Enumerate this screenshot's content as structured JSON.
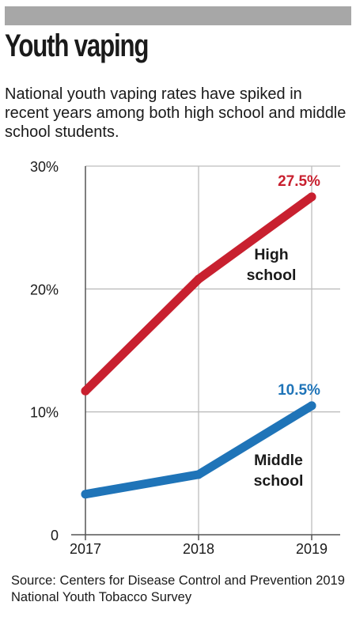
{
  "header": {
    "title": "Youth vaping",
    "subtitle": "National youth vaping rates have spiked in recent years among both high school and middle school students."
  },
  "source": "Source: Centers for Disease Control and Prevention 2019 National Youth Tobacco Survey",
  "chart_data": {
    "type": "line",
    "title": "Youth vaping",
    "x": [
      "2017",
      "2018",
      "2019"
    ],
    "y_ticks": [
      0,
      10,
      20,
      30
    ],
    "y_tick_labels": [
      "0",
      "10%",
      "20%",
      "30%"
    ],
    "ylim": [
      0,
      30
    ],
    "grid": true,
    "series": [
      {
        "name": "High school",
        "name_lines": [
          "High",
          "school"
        ],
        "values": [
          11.7,
          20.8,
          27.5
        ],
        "color": "#c8202f",
        "end_label": "27.5%"
      },
      {
        "name": "Middle school",
        "name_lines": [
          "Middle",
          "school"
        ],
        "values": [
          3.3,
          4.9,
          10.5
        ],
        "color": "#1f74b8",
        "end_label": "10.5%"
      }
    ]
  }
}
